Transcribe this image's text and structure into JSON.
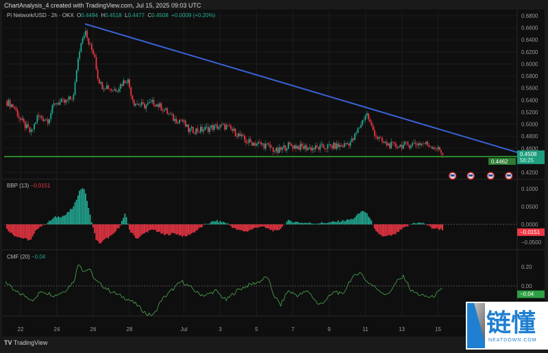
{
  "header": {
    "title": "ChartAnalysis_4 created with TradingView.com, Jul 15, 2025 09:03 UTC"
  },
  "legend": {
    "symbol": "Pi Network/USD · 2h · OKX",
    "o_label": "O",
    "o": "0.4494",
    "h_label": "H",
    "h": "0.4518",
    "l_label": "L",
    "l": "0.4477",
    "c_label": "C",
    "c": "0.4508",
    "change": "+0.0009 (+0.20%)"
  },
  "bbp_legend": {
    "name": "BBP (13)",
    "value": "−0.0151"
  },
  "cmf_legend": {
    "name": "CMF (20)",
    "value": "−0.04"
  },
  "footer": {
    "brand": "TradingView"
  },
  "watermark": {
    "cn": "链懂",
    "en": "NEATDOWN.COM"
  },
  "colors": {
    "up": "#22ab94",
    "down": "#f23645",
    "trend": "#3b63d9",
    "support": "#2e8b2e",
    "cmf": "#4caf50"
  },
  "chart_data": [
    {
      "type": "candlestick",
      "title": "Pi Network/USD 2h OKX",
      "ylim": [
        0.41,
        0.69
      ],
      "yticks": [
        "0.6800",
        "0.6600",
        "0.6400",
        "0.6200",
        "0.6000",
        "0.5800",
        "0.5600",
        "0.5400",
        "0.5200",
        "0.5000",
        "0.4800",
        "0.4600",
        "0.4200"
      ],
      "xunit": "days since Jun 22",
      "xticks": [
        {
          "d": 0,
          "label": "22"
        },
        {
          "d": 2,
          "label": "24"
        },
        {
          "d": 4,
          "label": "26"
        },
        {
          "d": 6,
          "label": "28"
        },
        {
          "d": 9,
          "label": "Jul"
        },
        {
          "d": 11,
          "label": "3"
        },
        {
          "d": 13,
          "label": "5"
        },
        {
          "d": 15,
          "label": "7"
        },
        {
          "d": 17,
          "label": "9"
        },
        {
          "d": 19,
          "label": "11"
        },
        {
          "d": 21,
          "label": "13"
        },
        {
          "d": 23,
          "label": "15"
        }
      ],
      "close_path": [
        [
          -0.83,
          0.538
        ],
        [
          -0.38,
          0.53
        ],
        [
          0,
          0.507
        ],
        [
          0.57,
          0.485
        ],
        [
          0.94,
          0.513
        ],
        [
          1.51,
          0.507
        ],
        [
          1.89,
          0.536
        ],
        [
          2.45,
          0.536
        ],
        [
          2.94,
          0.547
        ],
        [
          3.09,
          0.593
        ],
        [
          3.32,
          0.638
        ],
        [
          3.55,
          0.655
        ],
        [
          3.77,
          0.632
        ],
        [
          4.08,
          0.615
        ],
        [
          4.23,
          0.581
        ],
        [
          4.45,
          0.564
        ],
        [
          4.72,
          0.564
        ],
        [
          4.98,
          0.558
        ],
        [
          5.28,
          0.558
        ],
        [
          5.66,
          0.57
        ],
        [
          5.89,
          0.575
        ],
        [
          6.23,
          0.536
        ],
        [
          6.79,
          0.53
        ],
        [
          7.36,
          0.536
        ],
        [
          7.92,
          0.524
        ],
        [
          8.49,
          0.507
        ],
        [
          8.87,
          0.507
        ],
        [
          9.25,
          0.49
        ],
        [
          9.81,
          0.49
        ],
        [
          10.19,
          0.492
        ],
        [
          10.75,
          0.496
        ],
        [
          11.32,
          0.496
        ],
        [
          11.89,
          0.485
        ],
        [
          12.45,
          0.471
        ],
        [
          13.02,
          0.468
        ],
        [
          13.58,
          0.464
        ],
        [
          14.15,
          0.454
        ],
        [
          14.72,
          0.465
        ],
        [
          15.47,
          0.462
        ],
        [
          16.23,
          0.46
        ],
        [
          16.98,
          0.463
        ],
        [
          17.74,
          0.464
        ],
        [
          18.3,
          0.473
        ],
        [
          18.68,
          0.496
        ],
        [
          19.06,
          0.519
        ],
        [
          19.32,
          0.496
        ],
        [
          19.62,
          0.479
        ],
        [
          20.0,
          0.468
        ],
        [
          20.57,
          0.464
        ],
        [
          21.13,
          0.465
        ],
        [
          21.7,
          0.468
        ],
        [
          22.26,
          0.468
        ],
        [
          22.83,
          0.462
        ],
        [
          23.32,
          0.4508
        ]
      ],
      "trendline": [
        [
          3.55,
          0.6664
        ],
        [
          27.5,
          0.452
        ]
      ],
      "support": 0.4462,
      "last_price": "0.4508",
      "countdown": "56:25",
      "support_label": "0.4462",
      "event_markers": [
        23.8,
        24.8,
        25.9,
        26.9
      ]
    },
    {
      "type": "bar",
      "title": "BBP (13)",
      "ylim": [
        -0.065,
        0.115
      ],
      "yticks": [
        "0.1000",
        "0.0500",
        "0.0000",
        "−0.0500"
      ],
      "last_label": "−0.0151",
      "series": [
        [
          -0.83,
          -0.01
        ],
        [
          -0.38,
          -0.03
        ],
        [
          0.19,
          -0.04
        ],
        [
          0.57,
          -0.045
        ],
        [
          0.94,
          -0.01
        ],
        [
          1.51,
          0.005
        ],
        [
          1.89,
          0.02
        ],
        [
          2.45,
          0.025
        ],
        [
          2.94,
          0.05
        ],
        [
          3.21,
          0.09
        ],
        [
          3.4,
          0.105
        ],
        [
          3.58,
          0.09
        ],
        [
          3.77,
          0.04
        ],
        [
          4.15,
          -0.04
        ],
        [
          4.34,
          -0.055
        ],
        [
          4.72,
          -0.04
        ],
        [
          5.09,
          -0.03
        ],
        [
          5.47,
          -0.005
        ],
        [
          5.77,
          0.03
        ],
        [
          6.04,
          -0.02
        ],
        [
          6.42,
          -0.04
        ],
        [
          6.98,
          -0.02
        ],
        [
          7.36,
          -0.015
        ],
        [
          7.92,
          -0.03
        ],
        [
          8.49,
          -0.025
        ],
        [
          9.06,
          -0.035
        ],
        [
          9.62,
          -0.02
        ],
        [
          10.19,
          0.0
        ],
        [
          10.75,
          0.01
        ],
        [
          11.32,
          0.005
        ],
        [
          11.89,
          -0.015
        ],
        [
          12.45,
          -0.02
        ],
        [
          13.21,
          -0.005
        ],
        [
          13.77,
          -0.015
        ],
        [
          14.15,
          -0.02
        ],
        [
          14.72,
          0.01
        ],
        [
          15.47,
          0.005
        ],
        [
          16.23,
          0.003
        ],
        [
          16.98,
          0.005
        ],
        [
          17.74,
          0.01
        ],
        [
          18.3,
          0.015
        ],
        [
          18.87,
          0.04
        ],
        [
          19.25,
          0.02
        ],
        [
          19.55,
          -0.02
        ],
        [
          20.0,
          -0.035
        ],
        [
          20.57,
          -0.03
        ],
        [
          21.13,
          -0.01
        ],
        [
          21.7,
          0.005
        ],
        [
          22.26,
          0.003
        ],
        [
          22.64,
          -0.01
        ],
        [
          23.32,
          -0.0151
        ]
      ]
    },
    {
      "type": "line",
      "title": "CMF (20)",
      "ylim": [
        -0.36,
        0.3
      ],
      "yticks": [
        "0.20",
        "0.00"
      ],
      "last_label": "−0.04",
      "series": [
        [
          -0.83,
          0.05
        ],
        [
          -0.38,
          -0.05
        ],
        [
          0.19,
          -0.1
        ],
        [
          0.75,
          -0.15
        ],
        [
          1.13,
          -0.05
        ],
        [
          1.89,
          -0.1
        ],
        [
          2.45,
          -0.05
        ],
        [
          2.94,
          0.05
        ],
        [
          3.21,
          0.25
        ],
        [
          3.47,
          0.15
        ],
        [
          3.77,
          0.18
        ],
        [
          4.15,
          0.05
        ],
        [
          4.53,
          0.0
        ],
        [
          4.91,
          -0.05
        ],
        [
          5.47,
          -0.1
        ],
        [
          6.04,
          -0.15
        ],
        [
          6.42,
          -0.2
        ],
        [
          6.98,
          -0.3
        ],
        [
          7.36,
          -0.3
        ],
        [
          7.74,
          -0.15
        ],
        [
          8.3,
          -0.05
        ],
        [
          8.87,
          0.05
        ],
        [
          9.25,
          0.0
        ],
        [
          9.81,
          -0.08
        ],
        [
          10.19,
          -0.1
        ],
        [
          10.75,
          -0.05
        ],
        [
          11.32,
          -0.15
        ],
        [
          11.89,
          -0.05
        ],
        [
          12.45,
          0.0
        ],
        [
          13.21,
          0.05
        ],
        [
          13.58,
          0.1
        ],
        [
          13.96,
          -0.1
        ],
        [
          14.34,
          -0.2
        ],
        [
          14.72,
          -0.05
        ],
        [
          15.28,
          -0.1
        ],
        [
          15.85,
          -0.05
        ],
        [
          16.42,
          -0.2
        ],
        [
          16.79,
          -0.15
        ],
        [
          17.36,
          -0.05
        ],
        [
          17.74,
          -0.1
        ],
        [
          18.11,
          0.05
        ],
        [
          18.68,
          0.15
        ],
        [
          19.06,
          0.05
        ],
        [
          19.43,
          0.0
        ],
        [
          19.81,
          -0.05
        ],
        [
          20.19,
          -0.1
        ],
        [
          20.75,
          0.05
        ],
        [
          21.13,
          0.1
        ],
        [
          21.51,
          -0.05
        ],
        [
          22.08,
          -0.1
        ],
        [
          22.64,
          -0.12
        ],
        [
          23.21,
          -0.04
        ]
      ]
    }
  ]
}
